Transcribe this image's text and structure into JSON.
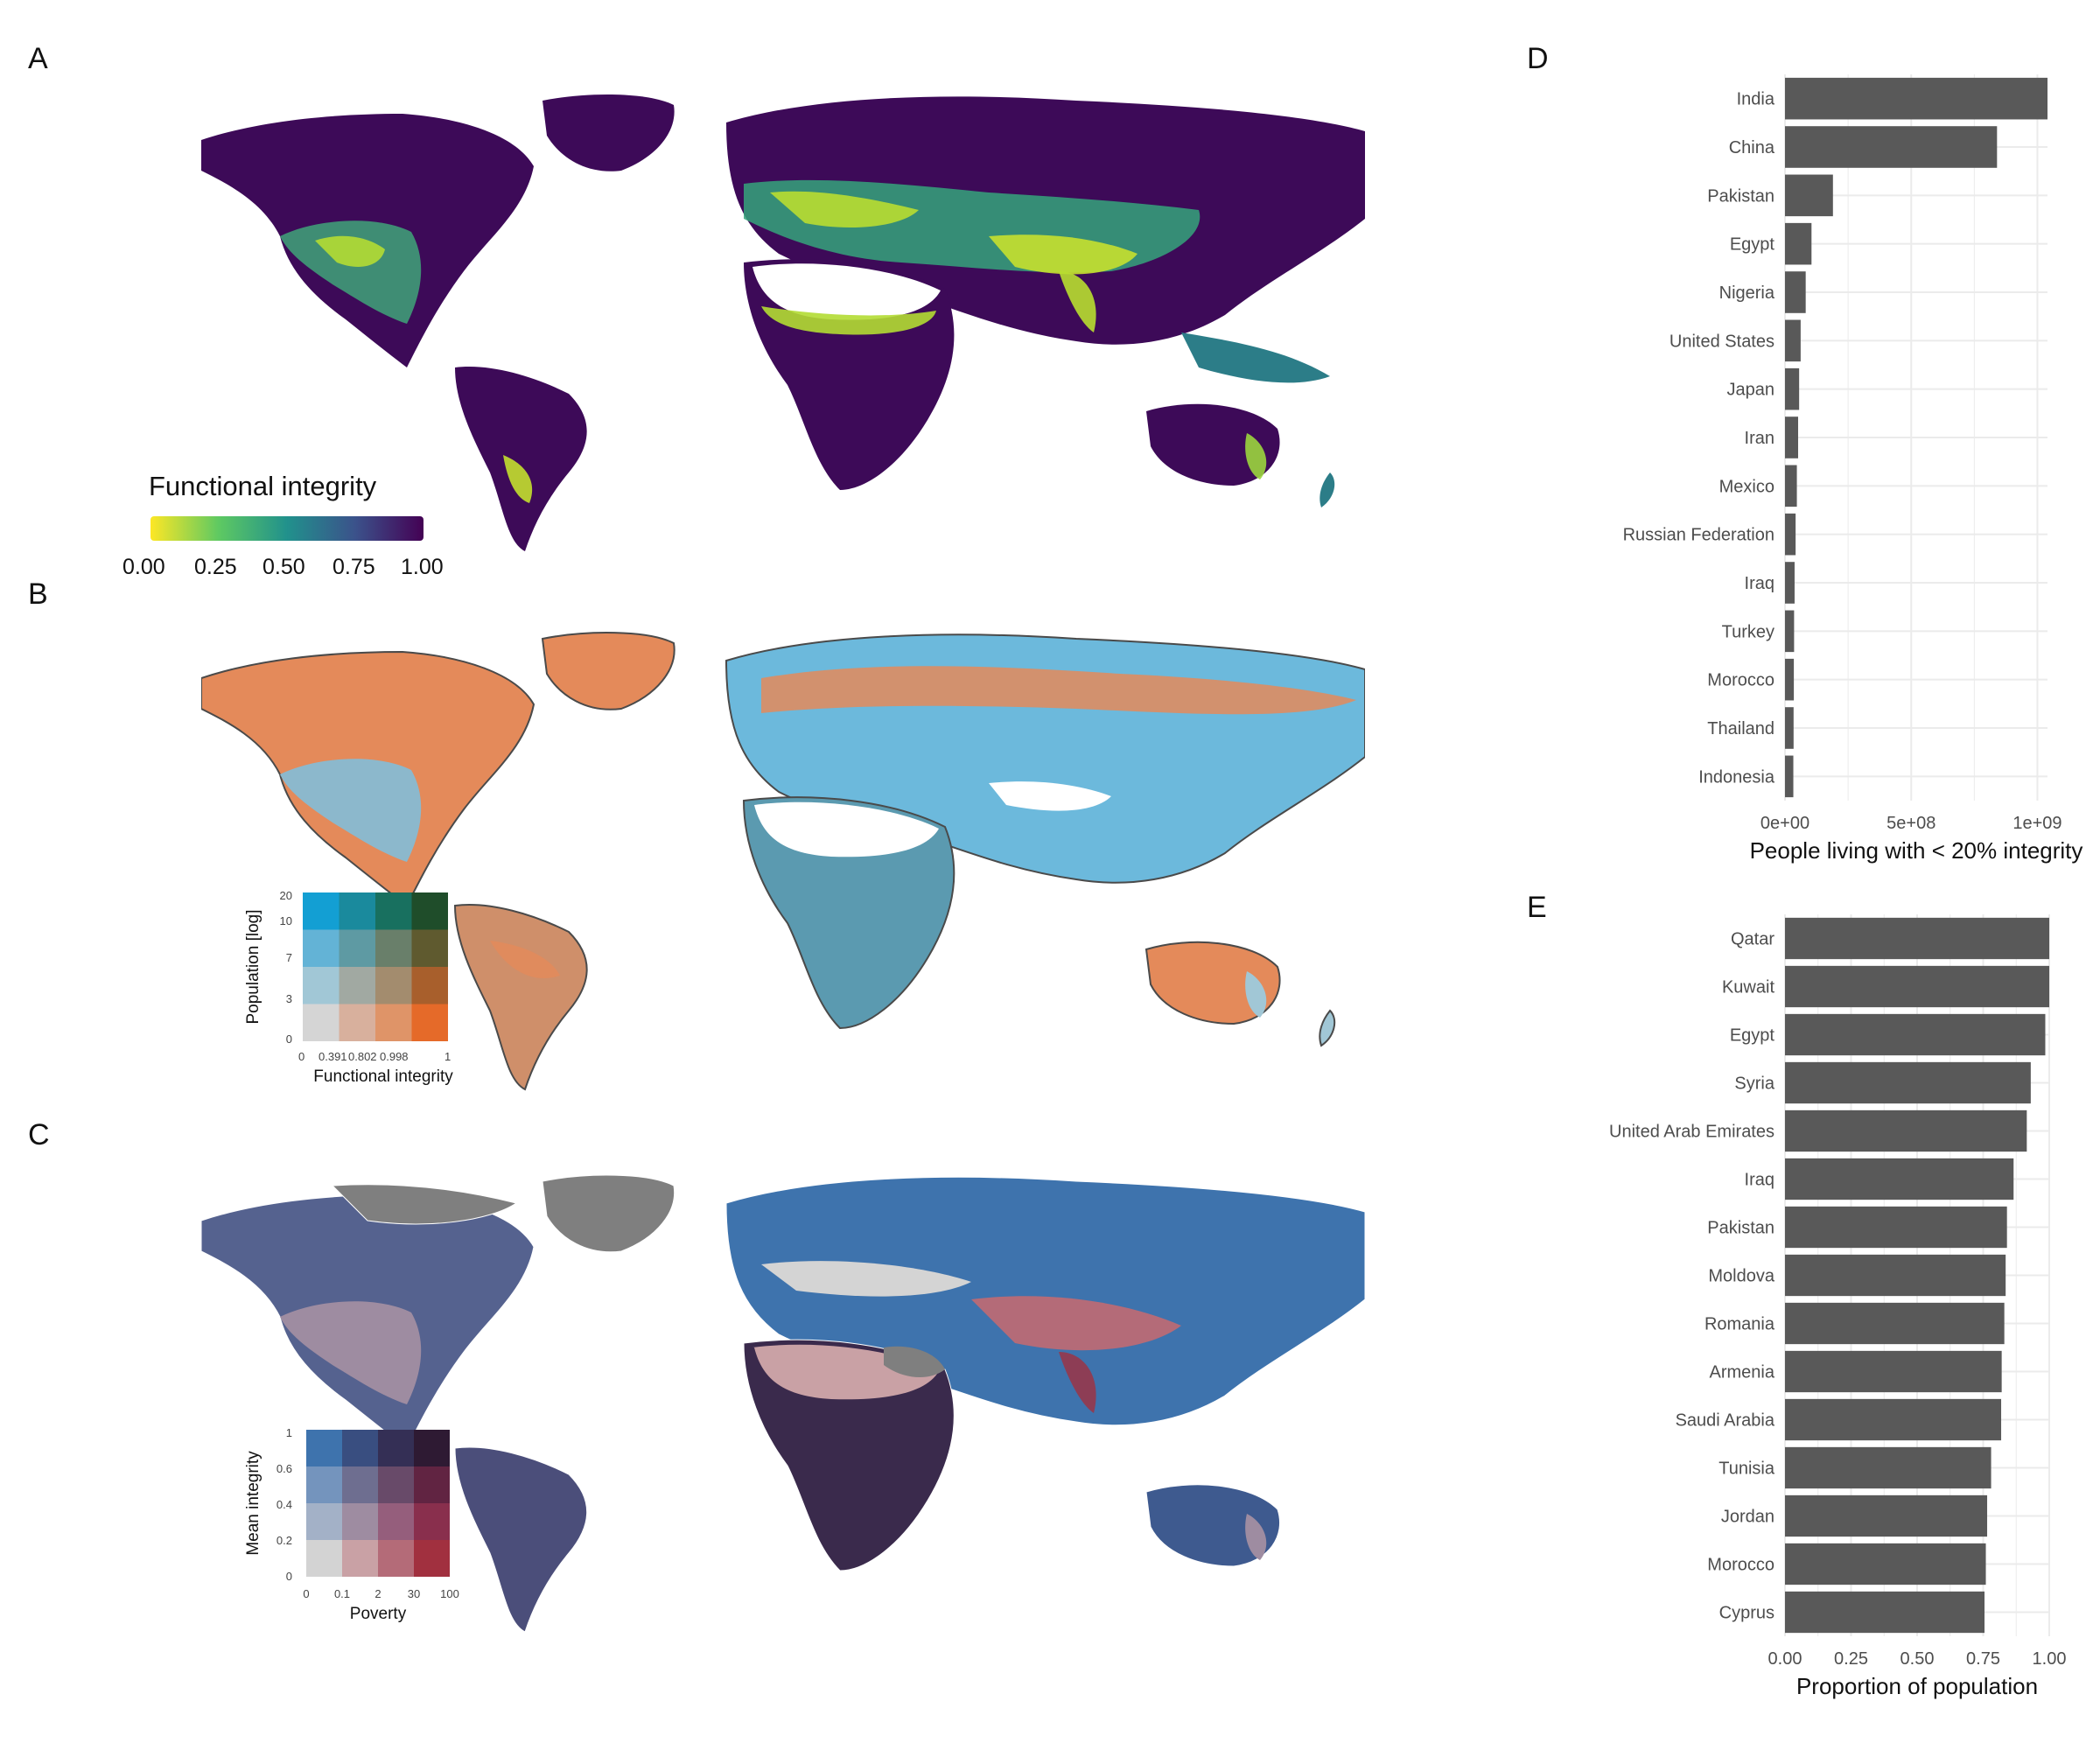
{
  "panels": {
    "a": "A",
    "b": "B",
    "c": "C",
    "d": "D",
    "e": "E"
  },
  "colors": {
    "viridis": [
      "#fde725",
      "#5ec962",
      "#21918c",
      "#3b528b",
      "#440154"
    ],
    "land_dark": "#3d0a58",
    "bar": "#595959",
    "grid": "#ebebeb"
  },
  "panel_a": {
    "legend_title": "Functional integrity",
    "legend_ticks": [
      "0.00",
      "0.25",
      "0.50",
      "0.75",
      "1.00"
    ]
  },
  "panel_b": {
    "y_title": "Population [log]",
    "x_title": "Functional integrity",
    "y_ticks": [
      "20",
      "10",
      "7",
      "3",
      "0"
    ],
    "x_ticks": [
      "0",
      "0.391",
      "0.802",
      "0.998",
      "1"
    ],
    "grid_colors": [
      [
        "#139fd3",
        "#1a8a9d",
        "#18705f",
        "#1f4d2a"
      ],
      [
        "#63b3d6",
        "#5e9aa3",
        "#697f6a",
        "#5f5a2f"
      ],
      [
        "#a1c7d6",
        "#a1a9a2",
        "#a38c6e",
        "#a85f2c"
      ],
      [
        "#d5d5d5",
        "#d8b09d",
        "#df9468",
        "#e56a29"
      ]
    ]
  },
  "panel_c": {
    "y_title": "Mean integrity",
    "x_title": "Poverty",
    "y_ticks": [
      "1",
      "0.6",
      "0.4",
      "0.2",
      "0"
    ],
    "x_ticks": [
      "0",
      "0.1",
      "2",
      "30",
      "100"
    ],
    "grid_colors": [
      [
        "#3e73ad",
        "#394e80",
        "#342f55",
        "#2e1a33"
      ],
      [
        "#7494bd",
        "#6e6e90",
        "#684a69",
        "#612442"
      ],
      [
        "#a3b1c7",
        "#9e8ca1",
        "#955e7c",
        "#892f4d"
      ],
      [
        "#d3d3d3",
        "#c9a1a5",
        "#b46b78",
        "#a1303f"
      ]
    ]
  },
  "chart_data": [
    {
      "type": "bar",
      "orientation": "horizontal",
      "categories": [
        "India",
        "China",
        "Pakistan",
        "Egypt",
        "Nigeria",
        "United States",
        "Japan",
        "Iran",
        "Mexico",
        "Russian Federation",
        "Iraq",
        "Turkey",
        "Morocco",
        "Thailand",
        "Indonesia"
      ],
      "values": [
        1040000000,
        840000000,
        190000000,
        105000000,
        82000000,
        62000000,
        56000000,
        52000000,
        47000000,
        42000000,
        38000000,
        36000000,
        35000000,
        34000000,
        33000000
      ],
      "xlabel": "People living with < 20% integrity",
      "ylabel": "",
      "xlim": [
        0,
        1040000000
      ],
      "xticks": [
        0,
        500000000,
        1000000000
      ],
      "xtick_labels": [
        "0e+00",
        "5e+08",
        "1e+09"
      ],
      "grid": true
    },
    {
      "type": "bar",
      "orientation": "horizontal",
      "categories": [
        "Qatar",
        "Kuwait",
        "Egypt",
        "Syria",
        "United Arab Emirates",
        "Iraq",
        "Pakistan",
        "Moldova",
        "Romania",
        "Armenia",
        "Saudi Arabia",
        "Tunisia",
        "Jordan",
        "Morocco",
        "Cyprus"
      ],
      "values": [
        1.0,
        1.0,
        0.985,
        0.93,
        0.915,
        0.865,
        0.84,
        0.835,
        0.83,
        0.82,
        0.818,
        0.78,
        0.765,
        0.76,
        0.755
      ],
      "xlabel": "Proportion of population",
      "ylabel": "",
      "xlim": [
        0,
        1.0
      ],
      "xticks": [
        0,
        0.25,
        0.5,
        0.75,
        1.0
      ],
      "xtick_labels": [
        "0.00",
        "0.25",
        "0.50",
        "0.75",
        "1.00"
      ],
      "grid": true
    }
  ]
}
